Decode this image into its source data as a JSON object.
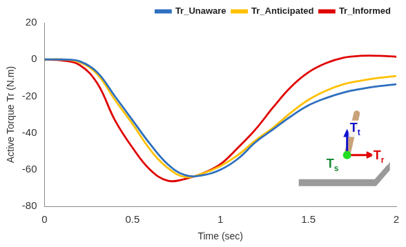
{
  "chart_data": {
    "type": "line",
    "x_label": "Time (sec)",
    "y_label": "Active Torque Tr (N.m)",
    "x": [
      0,
      0.1,
      0.2,
      0.3,
      0.4,
      0.5,
      0.6,
      0.7,
      0.8,
      0.9,
      1.0,
      1.1,
      1.2,
      1.3,
      1.4,
      1.5,
      1.6,
      1.7,
      1.8,
      1.9,
      2.0
    ],
    "series": [
      {
        "name": "Tr_Unaware",
        "color": "#2e6fbf",
        "values": [
          0,
          0,
          -1,
          -7,
          -20,
          -33,
          -46,
          -57,
          -63,
          -63,
          -60,
          -54,
          -45,
          -38,
          -31,
          -25,
          -21,
          -18,
          -16,
          -14.5,
          -13.5
        ]
      },
      {
        "name": "Tr_Anticipated",
        "color": "#ffc000",
        "values": [
          0,
          0,
          -1.5,
          -8,
          -22,
          -35,
          -49,
          -59,
          -64,
          -62,
          -58,
          -52,
          -44,
          -37,
          -29,
          -22,
          -17,
          -13.5,
          -11.5,
          -10,
          -9
        ]
      },
      {
        "name": "Tr_Informed",
        "color": "#e00000",
        "values": [
          0,
          -0.5,
          -3,
          -13,
          -33,
          -48,
          -60,
          -66,
          -65,
          -62,
          -57,
          -48,
          -38,
          -26,
          -15,
          -7,
          -2,
          1,
          2,
          2,
          1.5
        ]
      }
    ],
    "xlim": [
      0,
      2
    ],
    "xticks": [
      0,
      0.5,
      1,
      1.5,
      2
    ],
    "ylim": [
      -80,
      20
    ],
    "yticks": [
      -80,
      -60,
      -40,
      -20,
      0,
      20
    ],
    "grid": false,
    "legend": "top right",
    "annotations": [
      "Tt",
      "Ts",
      "Tr"
    ]
  }
}
